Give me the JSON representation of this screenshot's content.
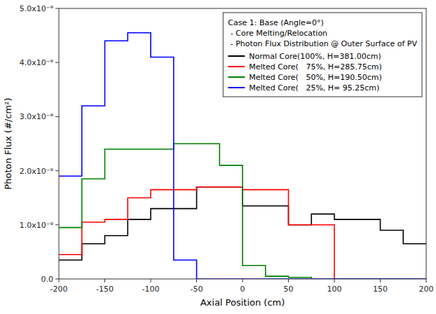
{
  "chart_data": {
    "type": "line",
    "x_label": "Axial Position (cm)",
    "y_label": "Photon Flux (#/cm²)",
    "annotations": [
      "Case 1: Base (Angle=0°)",
      " - Core Melting/Relocation",
      " - Photon Flux Distribution @ Outer Surface of PV"
    ],
    "xlim": [
      -200,
      200
    ],
    "ylim": [
      0.0,
      5e-09
    ],
    "xticks": [
      -200,
      -150,
      -100,
      -50,
      0,
      50,
      100,
      150,
      200
    ],
    "yticks": [
      {
        "value": 0.0,
        "label": "0.0"
      },
      {
        "value": 1e-09,
        "label": "1.0x10⁻⁹"
      },
      {
        "value": 2e-09,
        "label": "2.0x10⁻⁹"
      },
      {
        "value": 3e-09,
        "label": "3.0x10⁻⁹"
      },
      {
        "value": 4e-09,
        "label": "4.0x10⁻⁹"
      },
      {
        "value": 5e-09,
        "label": "5.0x10⁻⁹"
      }
    ],
    "grid": false,
    "legend": "upper right",
    "series": [
      {
        "name": "Normal Core(100%, H=381.00cm)",
        "color": "black",
        "x": [
          -200,
          -175,
          -175,
          -150,
          -150,
          -125,
          -125,
          -100,
          -100,
          -75,
          -75,
          -50,
          -50,
          -25,
          -25,
          0,
          0,
          25,
          25,
          50,
          50,
          75,
          75,
          100,
          100,
          125,
          125,
          150,
          150,
          175,
          175,
          200
        ],
        "values": [
          3.5e-10,
          3.5e-10,
          6.5e-10,
          6.5e-10,
          8e-10,
          8e-10,
          1.1e-09,
          1.1e-09,
          1.3e-09,
          1.3e-09,
          1.3e-09,
          1.3e-09,
          1.7e-09,
          1.7e-09,
          1.7e-09,
          1.7e-09,
          1.35e-09,
          1.35e-09,
          1.35e-09,
          1.35e-09,
          1e-09,
          1e-09,
          1.2e-09,
          1.2e-09,
          1.1e-09,
          1.1e-09,
          1.1e-09,
          1.1e-09,
          9e-10,
          9e-10,
          6.5e-10,
          6.5e-10
        ]
      },
      {
        "name": "Melted Core(   75%, H=285.75cm)",
        "color": "red",
        "x": [
          -200,
          -175,
          -175,
          -150,
          -150,
          -125,
          -125,
          -100,
          -100,
          -75,
          -75,
          -50,
          -50,
          -25,
          -25,
          0,
          0,
          25,
          25,
          50,
          50,
          75,
          75,
          100,
          100,
          175,
          175,
          200
        ],
        "values": [
          4.5e-10,
          4.5e-10,
          1.05e-09,
          1.05e-09,
          1.1e-09,
          1.1e-09,
          1.5e-09,
          1.5e-09,
          1.65e-09,
          1.65e-09,
          1.65e-09,
          1.65e-09,
          1.7e-09,
          1.7e-09,
          1.7e-09,
          1.7e-09,
          1.65e-09,
          1.65e-09,
          1.65e-09,
          1.65e-09,
          1e-09,
          1e-09,
          1e-09,
          1e-09,
          0.0,
          0.0,
          0.0,
          0.0
        ]
      },
      {
        "name": "Melted Core(   50%, H=190.50cm)",
        "color": "green",
        "x": [
          -200,
          -175,
          -175,
          -150,
          -150,
          -125,
          -125,
          -75,
          -75,
          -50,
          -50,
          -25,
          -25,
          0,
          0,
          25,
          25,
          50,
          50,
          75,
          75,
          200
        ],
        "values": [
          9.5e-10,
          9.5e-10,
          1.85e-09,
          1.85e-09,
          2.4e-09,
          2.4e-09,
          2.4e-09,
          2.4e-09,
          2.5e-09,
          2.5e-09,
          2.5e-09,
          2.5e-09,
          2.1e-09,
          2.1e-09,
          2.5e-10,
          2.5e-10,
          5e-11,
          5e-11,
          3e-11,
          3e-11,
          0.0,
          0.0
        ]
      },
      {
        "name": "Melted Core(   25%, H= 95.25cm)",
        "color": "blue",
        "x": [
          -200,
          -175,
          -175,
          -150,
          -150,
          -125,
          -125,
          -100,
          -100,
          -75,
          -75,
          -50,
          -50,
          200
        ],
        "values": [
          1.9e-09,
          1.9e-09,
          3.2e-09,
          3.2e-09,
          4.4e-09,
          4.4e-09,
          4.55e-09,
          4.55e-09,
          4.1e-09,
          4.1e-09,
          3.5e-10,
          3.5e-10,
          0.0,
          0.0
        ]
      }
    ]
  }
}
